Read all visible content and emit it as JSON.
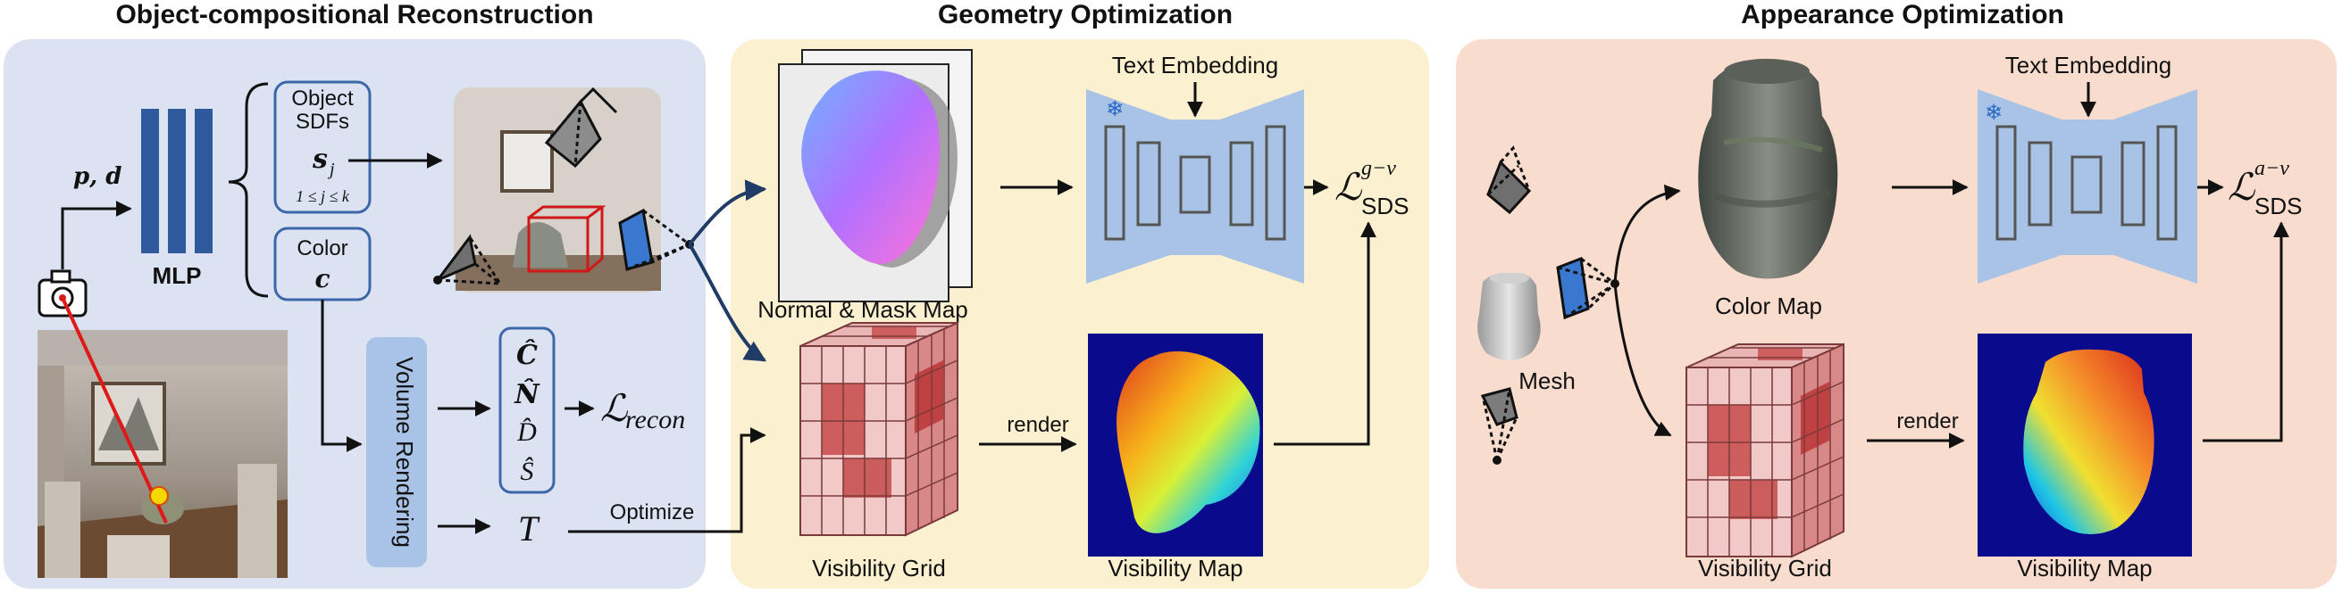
{
  "sections": {
    "reconstruction": {
      "title": "Object-compositional Reconstruction",
      "bg": "#dbe3f3"
    },
    "geometry": {
      "title": "Geometry Optimization",
      "bg": "#fbf0cf"
    },
    "appearance": {
      "title": "Appearance Optimization",
      "bg": "#f8dccd"
    }
  },
  "reconstruction": {
    "input": "p, d",
    "mlp": "MLP",
    "object_sdfs_line1": "Object",
    "object_sdfs_line2": "SDFs",
    "sdf_symbol": "s",
    "sdf_sub": "j",
    "sdf_range": "1 ≤ j ≤ k",
    "color_label": "Color",
    "color_symbol": "c",
    "volume_rendering": "Volume Rendering",
    "outputs": [
      "Ĉ",
      "N̂",
      "D̂",
      "Ŝ"
    ],
    "loss": "ℒ",
    "loss_sub": "recon",
    "t_symbol": "T",
    "optimize": "Optimize"
  },
  "geometry": {
    "text_embedding": "Text Embedding",
    "normal_mask": "Normal & Mask Map",
    "loss": "ℒ",
    "loss_sup": "g−v",
    "loss_sub": "SDS",
    "render": "render",
    "visibility_grid": "Visibility Grid",
    "visibility_map": "Visibility Map"
  },
  "appearance": {
    "text_embedding": "Text Embedding",
    "color_map": "Color Map",
    "mesh": "Mesh",
    "loss": "ℒ",
    "loss_sup": "a−v",
    "loss_sub": "SDS",
    "render": "render",
    "visibility_grid": "Visibility Grid",
    "visibility_map": "Visibility Map"
  },
  "colors": {
    "mlp_blue": "#2e5a9c",
    "box_border": "#3d67a8",
    "unet_fill": "#a9c3e6",
    "unet_block": "#555555",
    "camera_blue": "#3a78d0",
    "arrow_navy": "#1f3b66",
    "grid_red": "#c23a3a"
  }
}
